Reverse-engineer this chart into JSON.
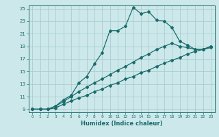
{
  "xlabel": "Humidex (Indice chaleur)",
  "bg_color": "#cce8ea",
  "grid_color": "#aacdd0",
  "line_color": "#1a6b6b",
  "xlim": [
    -0.5,
    23.5
  ],
  "ylim": [
    8.5,
    25.5
  ],
  "xticks": [
    0,
    1,
    2,
    3,
    4,
    5,
    6,
    7,
    8,
    9,
    10,
    11,
    12,
    13,
    14,
    15,
    16,
    17,
    18,
    19,
    20,
    21,
    22,
    23
  ],
  "yticks": [
    9,
    11,
    13,
    15,
    17,
    19,
    21,
    23,
    25
  ],
  "line1_x": [
    0,
    1,
    2,
    3,
    4,
    5,
    6,
    7,
    8,
    9,
    10,
    11,
    12,
    13,
    14,
    15,
    16,
    17,
    18,
    19,
    20,
    21,
    22,
    23
  ],
  "line1_y": [
    9,
    9,
    9,
    9.5,
    10.2,
    11.0,
    11.8,
    12.5,
    13.2,
    13.8,
    14.5,
    15.2,
    15.8,
    16.5,
    17.2,
    17.8,
    18.5,
    19.0,
    19.5,
    19.0,
    18.8,
    18.5,
    18.5,
    19.0
  ],
  "line2_x": [
    0,
    1,
    2,
    3,
    4,
    5,
    6,
    7,
    8,
    9,
    10,
    11,
    12,
    13,
    14,
    15,
    16,
    17,
    18,
    19,
    20,
    21,
    22,
    23
  ],
  "line2_y": [
    9,
    9,
    9,
    9.2,
    9.8,
    10.3,
    10.8,
    11.2,
    11.8,
    12.2,
    12.8,
    13.2,
    13.8,
    14.2,
    14.8,
    15.2,
    15.8,
    16.3,
    16.8,
    17.2,
    17.8,
    18.2,
    18.5,
    18.8
  ],
  "curve_x": [
    0,
    1,
    2,
    3,
    4,
    5,
    6,
    7,
    8,
    9,
    10,
    11,
    12,
    13,
    14,
    15,
    16,
    17,
    18,
    19,
    20,
    21,
    22,
    23
  ],
  "curve_y": [
    9,
    9,
    9,
    9.5,
    10.5,
    11.2,
    13.2,
    14.2,
    16.2,
    18.0,
    21.5,
    21.5,
    22.2,
    25.2,
    24.2,
    24.5,
    23.2,
    23.0,
    22.0,
    19.8,
    19.2,
    18.5,
    18.5,
    19.0
  ]
}
